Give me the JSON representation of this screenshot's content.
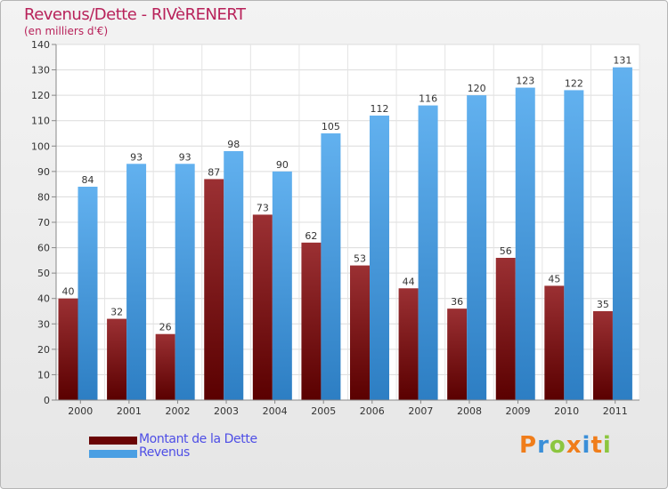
{
  "title": "Revenus/Dette - RIVèRENERT",
  "subtitle": "(en milliers d'€)",
  "brand": "Proxiti",
  "legend": {
    "debt": "Montant de la Dette",
    "revenue": "Revenus"
  },
  "colors": {
    "debt_top": "#9b3033",
    "debt_bottom": "#5a0000",
    "revenue_top": "#62b1ef",
    "revenue_bottom": "#2d7ec3",
    "title": "#b8225a",
    "legend_text": "#4e4ee6"
  },
  "chart_data": {
    "type": "bar",
    "categories": [
      "2000",
      "2001",
      "2002",
      "2003",
      "2004",
      "2005",
      "2006",
      "2007",
      "2008",
      "2009",
      "2010",
      "2011"
    ],
    "series": [
      {
        "name": "Montant de la Dette",
        "values": [
          40,
          32,
          26,
          87,
          73,
          62,
          53,
          44,
          36,
          56,
          45,
          35
        ]
      },
      {
        "name": "Revenus",
        "values": [
          84,
          93,
          93,
          98,
          90,
          105,
          112,
          116,
          120,
          123,
          122,
          131
        ]
      }
    ],
    "ylim": [
      0,
      140
    ],
    "yticks": [
      0,
      10,
      20,
      30,
      40,
      50,
      60,
      70,
      80,
      90,
      100,
      110,
      120,
      130,
      140
    ],
    "grid": true,
    "legend_position": "bottom-left"
  }
}
